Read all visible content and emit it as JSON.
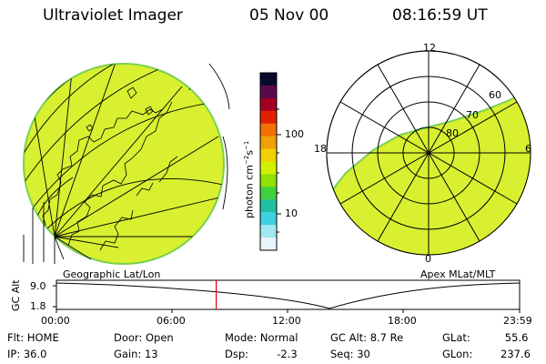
{
  "header": {
    "instrument": "Ultraviolet Imager",
    "date": "05 Nov 00",
    "time": "08:16:59 UT"
  },
  "colorbar": {
    "title": "photon cm-2s-1",
    "title_main": "photon cm",
    "title_exp1": "−2",
    "title_mid": "s",
    "title_exp2": "−1",
    "ticks": [
      "100",
      "10"
    ],
    "colors": [
      "#0a0a2a",
      "#5a0a4a",
      "#a00020",
      "#e02000",
      "#f07000",
      "#f0a000",
      "#f0d000",
      "#d0f000",
      "#90e000",
      "#40d040",
      "#20c0a0",
      "#40d0e0",
      "#a0e8f0",
      "#e8f4f8"
    ]
  },
  "left_panel": {
    "label": "Geographic Lat/Lon",
    "fill_color": "#d8f030"
  },
  "right_panel": {
    "label": "Apex MLat/MLT",
    "mlt_labels": {
      "top": "12",
      "left": "18",
      "right": "6",
      "bottom": "0"
    },
    "lat_labels": [
      "60",
      "70",
      "80"
    ],
    "fill_color": "#d8f030"
  },
  "timeline": {
    "ylabel": "GC Alt",
    "ymax": "9.0",
    "ymin": "1.8",
    "xticks": [
      "00:00",
      "06:00",
      "12:00",
      "18:00",
      "23:59"
    ],
    "current_hour": 8.28
  },
  "status": {
    "row1": [
      {
        "label": "Flt:",
        "value": "HOME"
      },
      {
        "label": "Door:",
        "value": "Open"
      },
      {
        "label": "Mode:",
        "value": "Normal"
      },
      {
        "label": "GC Alt:",
        "value": "8.7 Re"
      },
      {
        "label": "GLat:",
        "value": "55.6"
      }
    ],
    "row2": [
      {
        "label": "IP:",
        "value": "36.0"
      },
      {
        "label": "Gain:",
        "value": "13"
      },
      {
        "label": "Dsp:",
        "value": "-2.3"
      },
      {
        "label": "Seq:",
        "value": "30"
      },
      {
        "label": "GLon:",
        "value": "237.6"
      }
    ]
  }
}
